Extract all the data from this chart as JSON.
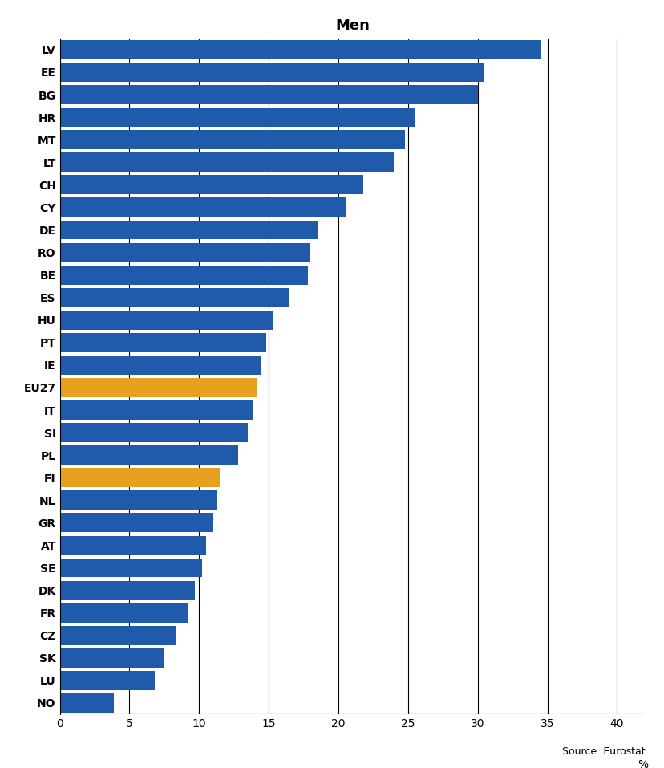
{
  "title": "Men",
  "categories": [
    "LV",
    "EE",
    "BG",
    "HR",
    "MT",
    "LT",
    "CH",
    "CY",
    "DE",
    "RO",
    "BE",
    "ES",
    "HU",
    "PT",
    "IE",
    "EU27",
    "IT",
    "SI",
    "PL",
    "FI",
    "NL",
    "GR",
    "AT",
    "SE",
    "DK",
    "FR",
    "CZ",
    "SK",
    "LU",
    "NO"
  ],
  "values": [
    34.5,
    30.5,
    30.0,
    25.5,
    24.8,
    24.0,
    21.8,
    20.5,
    18.5,
    18.0,
    17.8,
    16.5,
    15.3,
    14.8,
    14.5,
    14.2,
    13.9,
    13.5,
    12.8,
    11.5,
    11.3,
    11.0,
    10.5,
    10.2,
    9.7,
    9.2,
    8.3,
    7.5,
    6.8,
    3.9
  ],
  "bar_colors": [
    "#1f5aab",
    "#1f5aab",
    "#1f5aab",
    "#1f5aab",
    "#1f5aab",
    "#1f5aab",
    "#1f5aab",
    "#1f5aab",
    "#1f5aab",
    "#1f5aab",
    "#1f5aab",
    "#1f5aab",
    "#1f5aab",
    "#1f5aab",
    "#1f5aab",
    "#e8a020",
    "#1f5aab",
    "#1f5aab",
    "#1f5aab",
    "#e8a020",
    "#1f5aab",
    "#1f5aab",
    "#1f5aab",
    "#1f5aab",
    "#1f5aab",
    "#1f5aab",
    "#1f5aab",
    "#1f5aab",
    "#1f5aab",
    "#1f5aab"
  ],
  "xlim": [
    0,
    42
  ],
  "xticks": [
    0,
    5,
    10,
    15,
    20,
    25,
    30,
    35,
    40
  ],
  "xlabel": "%",
  "source": "Source: Eurostat",
  "background_color": "#ffffff",
  "grid_color": "#000000",
  "title_fontsize": 13,
  "label_fontsize": 10,
  "tick_fontsize": 10,
  "source_fontsize": 9
}
